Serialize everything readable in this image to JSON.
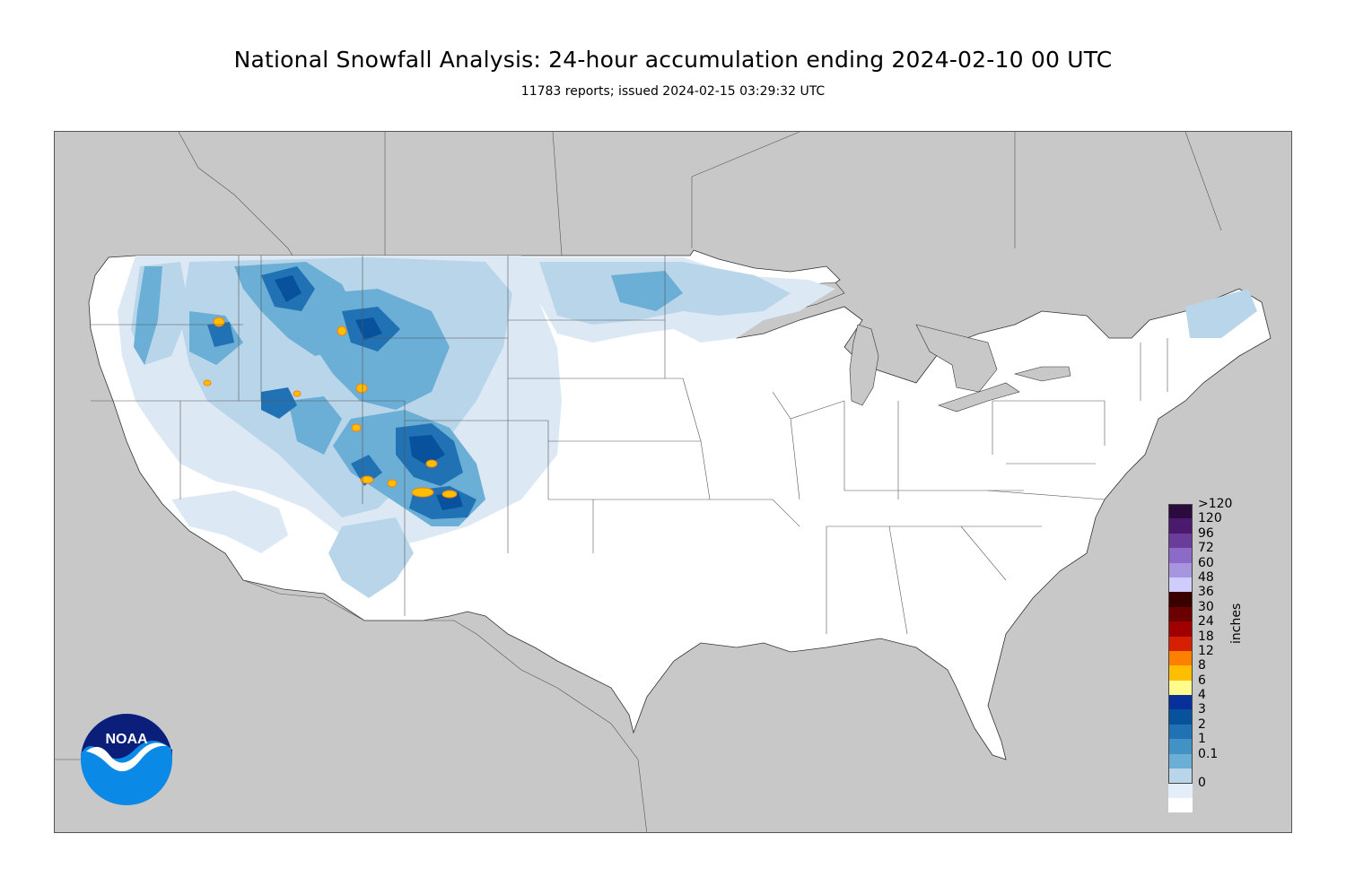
{
  "header": {
    "title": "National Snowfall Analysis: 24-hour accumulation ending 2024-02-10 00 UTC",
    "subtitle": "11783 reports; issued 2024-02-15 03:29:32 UTC"
  },
  "legend": {
    "units_label": "inches",
    "items": [
      {
        "label": ">120",
        "color": "#2b0a3d"
      },
      {
        "label": "120",
        "color": "#4b1a6e"
      },
      {
        "label": "96",
        "color": "#6a3d9a"
      },
      {
        "label": "72",
        "color": "#8c6bc8"
      },
      {
        "label": "60",
        "color": "#a895e0"
      },
      {
        "label": "48",
        "color": "#cfcdfb"
      },
      {
        "label": "36",
        "color": "#3a0000"
      },
      {
        "label": "30",
        "color": "#6b0000"
      },
      {
        "label": "24",
        "color": "#a00000"
      },
      {
        "label": "18",
        "color": "#d42000"
      },
      {
        "label": "12",
        "color": "#ff8000"
      },
      {
        "label": "8",
        "color": "#ffbe00"
      },
      {
        "label": "6",
        "color": "#fffb8c"
      },
      {
        "label": "4",
        "color": "#08309a"
      },
      {
        "label": "3",
        "color": "#08519c"
      },
      {
        "label": "2",
        "color": "#2171b5"
      },
      {
        "label": "1",
        "color": "#4292c6"
      },
      {
        "label": "0.1",
        "color": "#6baed6"
      },
      {
        "label": "",
        "color": "#b9d5ea"
      },
      {
        "label": "0",
        "color": "#e3eef8"
      },
      {
        "label": "",
        "color": "#ffffff"
      }
    ]
  },
  "logo": {
    "text": "NOAA"
  },
  "colors": {
    "land_background": "#c8c8c8",
    "conus_fill": "#ffffff",
    "snow_light": "#dce9f5",
    "snow_low": "#b9d5ea",
    "snow_mid": "#6baed6",
    "snow_high": "#2171b5",
    "snow_heavy": "#08519c",
    "snow_max": "#ffbe00"
  }
}
